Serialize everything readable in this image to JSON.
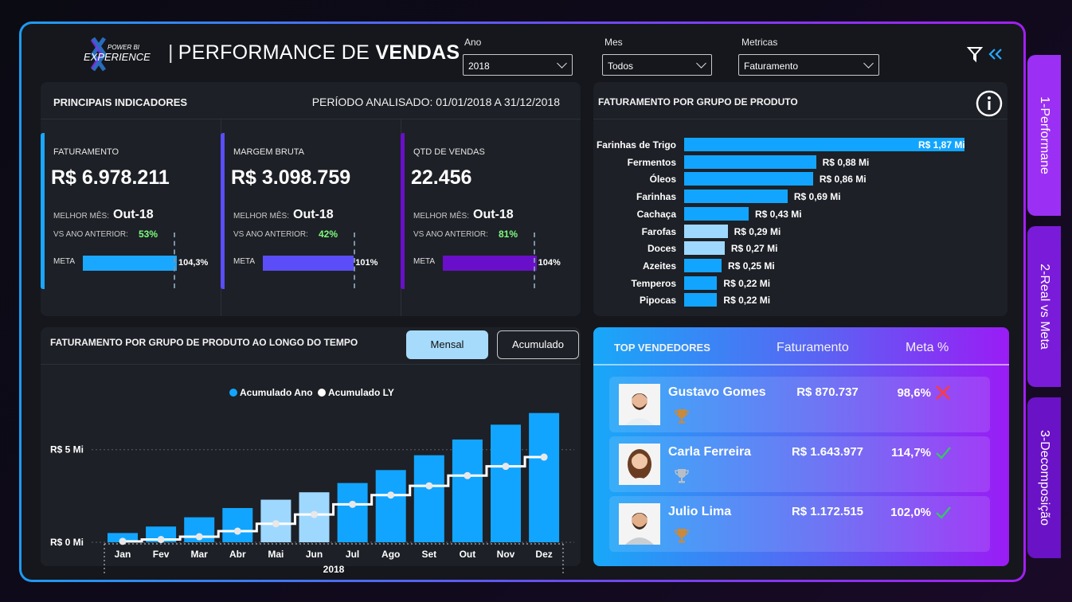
{
  "header": {
    "logo_text_top": "POWER BI",
    "logo_text_main": "EXPERIENCE",
    "title_prefix": "PERFORMANCE DE",
    "title_bold": "VENDAS",
    "filters": {
      "ano_label": "Ano",
      "ano_value": "2018",
      "mes_label": "Mes",
      "mes_value": "Todos",
      "metricas_label": "Metricas",
      "metricas_value": "Faturamento"
    },
    "clear_filter_icon": "filter-clear-icon",
    "collapse_icon": "double-chevron-left-icon"
  },
  "kpis": {
    "title": "PRINCIPAIS INDICADORES",
    "period": "PERÍODO ANALISADO: 01/01/2018 A 31/12/2018",
    "best_month_label": "MELHOR MÊS:",
    "vs_label": "VS ANO ANTERIOR:",
    "meta_label": "META",
    "cards": [
      {
        "label": "FATURAMENTO",
        "value": "R$ 6.978.211",
        "best_month": "Out-18",
        "vs": "53%",
        "meta": "104,3%",
        "meta_pct": 104.3,
        "color": "#1aa7ff"
      },
      {
        "label": "MARGEM BRUTA",
        "value": "R$ 3.098.759",
        "best_month": "Out-18",
        "vs": "42%",
        "meta": "101%",
        "meta_pct": 101,
        "color": "#5b4df7"
      },
      {
        "label": "QTD DE VENDAS",
        "value": "22.456",
        "best_month": "Out-18",
        "vs": "81%",
        "meta": "104%",
        "meta_pct": 104,
        "color": "#6a0fc9"
      }
    ]
  },
  "by_product": {
    "title": "FATURAMENTO POR GRUPO DE PRODUTO",
    "info_icon": "info-icon",
    "chart_data": {
      "type": "bar",
      "orientation": "horizontal",
      "categories": [
        "Farinhas de Trigo",
        "Fermentos",
        "Óleos",
        "Farinhas",
        "Cachaça",
        "Farofas",
        "Doces",
        "Azeites",
        "Temperos",
        "Pipocas"
      ],
      "values": [
        1.87,
        0.88,
        0.86,
        0.69,
        0.43,
        0.29,
        0.27,
        0.25,
        0.22,
        0.22
      ],
      "labels": [
        "R$ 1,87 Mi",
        "R$ 0,88 Mi",
        "R$ 0,86 Mi",
        "R$ 0,69 Mi",
        "R$ 0,43 Mi",
        "R$ 0,29 Mi",
        "R$ 0,27 Mi",
        "R$ 0,25 Mi",
        "R$ 0,22 Mi",
        "R$ 0,22 Mi"
      ],
      "colors": [
        "#12a5ff",
        "#12a5ff",
        "#12a5ff",
        "#12a5ff",
        "#12a5ff",
        "#9fd8ff",
        "#9fd8ff",
        "#12a5ff",
        "#12a5ff",
        "#12a5ff"
      ]
    }
  },
  "over_time": {
    "title": "FATURAMENTO POR GRUPO DE PRODUTO AO LONGO DO TEMPO",
    "btn_mensal": "Mensal",
    "btn_acumulado": "Acumulado",
    "chart_data": {
      "type": "bar",
      "categories": [
        "Jan",
        "Fev",
        "Mar",
        "Abr",
        "Mai",
        "Jun",
        "Jul",
        "Ago",
        "Set",
        "Out",
        "Nov",
        "Dez"
      ],
      "xlabel": "2018",
      "y_ticks": [
        "R$ 0 Mi",
        "R$ 5 Mi"
      ],
      "ylim": [
        0,
        8.6
      ],
      "series": [
        {
          "name": "Acumulado Ano",
          "type": "bar",
          "color": "#12a5ff",
          "values": [
            0.5,
            0.85,
            1.35,
            1.85,
            2.3,
            2.7,
            3.2,
            3.9,
            4.7,
            5.55,
            6.35,
            6.98
          ]
        },
        {
          "name": "Acumulado LY",
          "type": "line",
          "color": "#ffffff",
          "values": [
            0.05,
            0.15,
            0.3,
            0.6,
            1.0,
            1.5,
            2.05,
            2.55,
            3.05,
            3.6,
            4.1,
            4.6
          ]
        }
      ],
      "highlight_colors": {
        "Mai": "#9fd8ff",
        "Jun": "#9fd8ff"
      }
    }
  },
  "top_sellers": {
    "col_title": "TOP VENDEDORES",
    "col_fat": "Faturamento",
    "col_meta": "Meta %",
    "rows": [
      {
        "name": "Gustavo Gomes",
        "fat": "R$ 870.737",
        "meta": "98,6%",
        "status": "x-icon",
        "trophy": "bronze-trophy-icon"
      },
      {
        "name": "Carla Ferreira",
        "fat": "R$ 1.643.977",
        "meta": "114,7%",
        "status": "check-icon",
        "trophy": "silver-trophy-icon"
      },
      {
        "name": "Julio Lima",
        "fat": "R$ 1.172.515",
        "meta": "102,0%",
        "status": "check-icon",
        "trophy": "bronze-trophy-icon"
      }
    ]
  },
  "side_tabs": [
    "1-Performane",
    "2-Real vs Meta",
    "3-Decomposição"
  ]
}
